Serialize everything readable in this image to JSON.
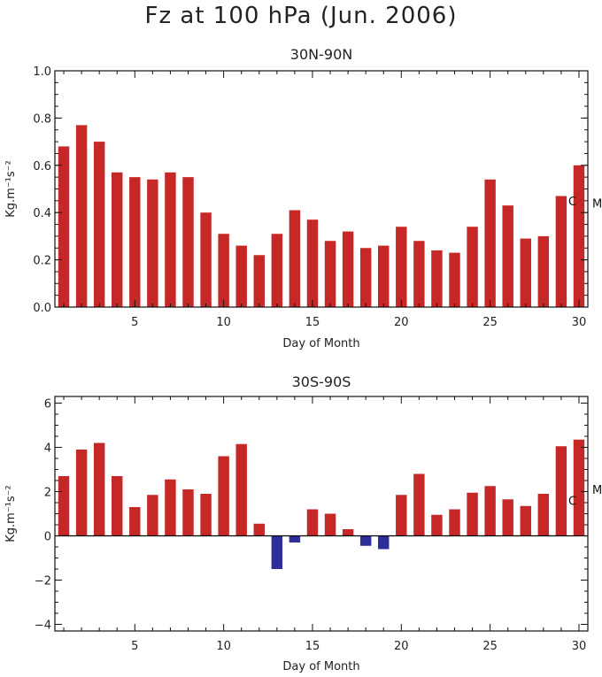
{
  "figure": {
    "title": "Fz at 100 hPa (Jun. 2006)"
  },
  "chart_data": [
    {
      "type": "bar",
      "title": "30N-90N",
      "xlabel": "Day of Month",
      "ylabel": "Kg.m⁻¹s⁻²",
      "xlim": [
        0.5,
        30.5
      ],
      "ylim": [
        0,
        1.0
      ],
      "yticks": [
        0.0,
        0.2,
        0.4,
        0.6,
        0.8,
        1.0
      ],
      "yticklabels": [
        "0.0",
        "0.2",
        "0.4",
        "0.6",
        "0.8",
        "1.0"
      ],
      "xticks": [
        5,
        10,
        15,
        20,
        25,
        30
      ],
      "x": [
        1,
        2,
        3,
        4,
        5,
        6,
        7,
        8,
        9,
        10,
        11,
        12,
        13,
        14,
        15,
        16,
        17,
        18,
        19,
        20,
        21,
        22,
        23,
        24,
        25,
        26,
        27,
        28,
        29,
        30
      ],
      "values": [
        0.68,
        0.77,
        0.7,
        0.57,
        0.55,
        0.54,
        0.57,
        0.55,
        0.4,
        0.31,
        0.26,
        0.22,
        0.31,
        0.41,
        0.37,
        0.28,
        0.32,
        0.25,
        0.26,
        0.34,
        0.28,
        0.24,
        0.23,
        0.34,
        0.54,
        0.43,
        0.29,
        0.3,
        0.47,
        0.6
      ],
      "colors": {
        "positive": "#c62828",
        "negative": "#2e2e9a"
      },
      "markers": [
        {
          "label": "C",
          "value": 0.45
        },
        {
          "label": "M",
          "value": 0.44
        }
      ],
      "grid": false
    },
    {
      "type": "bar",
      "title": "30S-90S",
      "xlabel": "Day of Month",
      "ylabel": "Kg.m⁻¹s⁻²",
      "xlim": [
        0.5,
        30.5
      ],
      "ylim": [
        -4.3,
        6.3
      ],
      "yticks": [
        -4,
        -2,
        0,
        2,
        4,
        6
      ],
      "yticklabels": [
        "−4",
        "−2",
        "0",
        "2",
        "4",
        "6"
      ],
      "xticks": [
        5,
        10,
        15,
        20,
        25,
        30
      ],
      "x": [
        1,
        2,
        3,
        4,
        5,
        6,
        7,
        8,
        9,
        10,
        11,
        12,
        13,
        14,
        15,
        16,
        17,
        18,
        19,
        20,
        21,
        22,
        23,
        24,
        25,
        26,
        27,
        28,
        29,
        30
      ],
      "values": [
        2.7,
        3.9,
        4.2,
        2.7,
        1.3,
        1.85,
        2.55,
        2.1,
        1.9,
        3.6,
        4.15,
        0.55,
        -1.5,
        -0.3,
        1.2,
        1.0,
        0.3,
        -0.45,
        -0.6,
        1.85,
        2.8,
        0.95,
        1.2,
        1.95,
        2.25,
        1.65,
        1.35,
        1.9,
        4.05,
        4.35
      ],
      "colors": {
        "positive": "#c62828",
        "negative": "#2e2e9a"
      },
      "markers": [
        {
          "label": "C",
          "value": 1.6
        },
        {
          "label": "M",
          "value": 2.1
        }
      ],
      "zero_line": true,
      "grid": false
    }
  ]
}
